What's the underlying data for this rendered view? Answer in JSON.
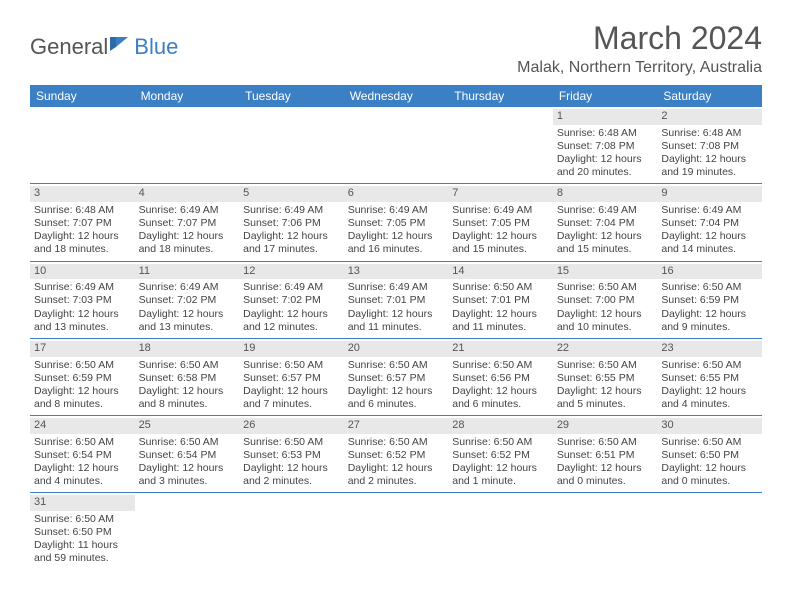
{
  "logo": {
    "part1": "General",
    "part2": "Blue"
  },
  "title": "March 2024",
  "location": "Malak, Northern Territory, Australia",
  "header_bg": "#3b7fc4",
  "daynum_bg": "#e8e8e8",
  "weekdays": [
    "Sunday",
    "Monday",
    "Tuesday",
    "Wednesday",
    "Thursday",
    "Friday",
    "Saturday"
  ],
  "weeks": [
    [
      {
        "n": "",
        "l1": "",
        "l2": "",
        "l3": "",
        "l4": ""
      },
      {
        "n": "",
        "l1": "",
        "l2": "",
        "l3": "",
        "l4": ""
      },
      {
        "n": "",
        "l1": "",
        "l2": "",
        "l3": "",
        "l4": ""
      },
      {
        "n": "",
        "l1": "",
        "l2": "",
        "l3": "",
        "l4": ""
      },
      {
        "n": "",
        "l1": "",
        "l2": "",
        "l3": "",
        "l4": ""
      },
      {
        "n": "1",
        "l1": "Sunrise: 6:48 AM",
        "l2": "Sunset: 7:08 PM",
        "l3": "Daylight: 12 hours",
        "l4": "and 20 minutes."
      },
      {
        "n": "2",
        "l1": "Sunrise: 6:48 AM",
        "l2": "Sunset: 7:08 PM",
        "l3": "Daylight: 12 hours",
        "l4": "and 19 minutes."
      }
    ],
    [
      {
        "n": "3",
        "l1": "Sunrise: 6:48 AM",
        "l2": "Sunset: 7:07 PM",
        "l3": "Daylight: 12 hours",
        "l4": "and 18 minutes."
      },
      {
        "n": "4",
        "l1": "Sunrise: 6:49 AM",
        "l2": "Sunset: 7:07 PM",
        "l3": "Daylight: 12 hours",
        "l4": "and 18 minutes."
      },
      {
        "n": "5",
        "l1": "Sunrise: 6:49 AM",
        "l2": "Sunset: 7:06 PM",
        "l3": "Daylight: 12 hours",
        "l4": "and 17 minutes."
      },
      {
        "n": "6",
        "l1": "Sunrise: 6:49 AM",
        "l2": "Sunset: 7:05 PM",
        "l3": "Daylight: 12 hours",
        "l4": "and 16 minutes."
      },
      {
        "n": "7",
        "l1": "Sunrise: 6:49 AM",
        "l2": "Sunset: 7:05 PM",
        "l3": "Daylight: 12 hours",
        "l4": "and 15 minutes."
      },
      {
        "n": "8",
        "l1": "Sunrise: 6:49 AM",
        "l2": "Sunset: 7:04 PM",
        "l3": "Daylight: 12 hours",
        "l4": "and 15 minutes."
      },
      {
        "n": "9",
        "l1": "Sunrise: 6:49 AM",
        "l2": "Sunset: 7:04 PM",
        "l3": "Daylight: 12 hours",
        "l4": "and 14 minutes."
      }
    ],
    [
      {
        "n": "10",
        "l1": "Sunrise: 6:49 AM",
        "l2": "Sunset: 7:03 PM",
        "l3": "Daylight: 12 hours",
        "l4": "and 13 minutes."
      },
      {
        "n": "11",
        "l1": "Sunrise: 6:49 AM",
        "l2": "Sunset: 7:02 PM",
        "l3": "Daylight: 12 hours",
        "l4": "and 13 minutes."
      },
      {
        "n": "12",
        "l1": "Sunrise: 6:49 AM",
        "l2": "Sunset: 7:02 PM",
        "l3": "Daylight: 12 hours",
        "l4": "and 12 minutes."
      },
      {
        "n": "13",
        "l1": "Sunrise: 6:49 AM",
        "l2": "Sunset: 7:01 PM",
        "l3": "Daylight: 12 hours",
        "l4": "and 11 minutes."
      },
      {
        "n": "14",
        "l1": "Sunrise: 6:50 AM",
        "l2": "Sunset: 7:01 PM",
        "l3": "Daylight: 12 hours",
        "l4": "and 11 minutes."
      },
      {
        "n": "15",
        "l1": "Sunrise: 6:50 AM",
        "l2": "Sunset: 7:00 PM",
        "l3": "Daylight: 12 hours",
        "l4": "and 10 minutes."
      },
      {
        "n": "16",
        "l1": "Sunrise: 6:50 AM",
        "l2": "Sunset: 6:59 PM",
        "l3": "Daylight: 12 hours",
        "l4": "and 9 minutes."
      }
    ],
    [
      {
        "n": "17",
        "l1": "Sunrise: 6:50 AM",
        "l2": "Sunset: 6:59 PM",
        "l3": "Daylight: 12 hours",
        "l4": "and 8 minutes."
      },
      {
        "n": "18",
        "l1": "Sunrise: 6:50 AM",
        "l2": "Sunset: 6:58 PM",
        "l3": "Daylight: 12 hours",
        "l4": "and 8 minutes."
      },
      {
        "n": "19",
        "l1": "Sunrise: 6:50 AM",
        "l2": "Sunset: 6:57 PM",
        "l3": "Daylight: 12 hours",
        "l4": "and 7 minutes."
      },
      {
        "n": "20",
        "l1": "Sunrise: 6:50 AM",
        "l2": "Sunset: 6:57 PM",
        "l3": "Daylight: 12 hours",
        "l4": "and 6 minutes."
      },
      {
        "n": "21",
        "l1": "Sunrise: 6:50 AM",
        "l2": "Sunset: 6:56 PM",
        "l3": "Daylight: 12 hours",
        "l4": "and 6 minutes."
      },
      {
        "n": "22",
        "l1": "Sunrise: 6:50 AM",
        "l2": "Sunset: 6:55 PM",
        "l3": "Daylight: 12 hours",
        "l4": "and 5 minutes."
      },
      {
        "n": "23",
        "l1": "Sunrise: 6:50 AM",
        "l2": "Sunset: 6:55 PM",
        "l3": "Daylight: 12 hours",
        "l4": "and 4 minutes."
      }
    ],
    [
      {
        "n": "24",
        "l1": "Sunrise: 6:50 AM",
        "l2": "Sunset: 6:54 PM",
        "l3": "Daylight: 12 hours",
        "l4": "and 4 minutes."
      },
      {
        "n": "25",
        "l1": "Sunrise: 6:50 AM",
        "l2": "Sunset: 6:54 PM",
        "l3": "Daylight: 12 hours",
        "l4": "and 3 minutes."
      },
      {
        "n": "26",
        "l1": "Sunrise: 6:50 AM",
        "l2": "Sunset: 6:53 PM",
        "l3": "Daylight: 12 hours",
        "l4": "and 2 minutes."
      },
      {
        "n": "27",
        "l1": "Sunrise: 6:50 AM",
        "l2": "Sunset: 6:52 PM",
        "l3": "Daylight: 12 hours",
        "l4": "and 2 minutes."
      },
      {
        "n": "28",
        "l1": "Sunrise: 6:50 AM",
        "l2": "Sunset: 6:52 PM",
        "l3": "Daylight: 12 hours",
        "l4": "and 1 minute."
      },
      {
        "n": "29",
        "l1": "Sunrise: 6:50 AM",
        "l2": "Sunset: 6:51 PM",
        "l3": "Daylight: 12 hours",
        "l4": "and 0 minutes."
      },
      {
        "n": "30",
        "l1": "Sunrise: 6:50 AM",
        "l2": "Sunset: 6:50 PM",
        "l3": "Daylight: 12 hours",
        "l4": "and 0 minutes."
      }
    ],
    [
      {
        "n": "31",
        "l1": "Sunrise: 6:50 AM",
        "l2": "Sunset: 6:50 PM",
        "l3": "Daylight: 11 hours",
        "l4": "and 59 minutes."
      },
      {
        "n": "",
        "l1": "",
        "l2": "",
        "l3": "",
        "l4": ""
      },
      {
        "n": "",
        "l1": "",
        "l2": "",
        "l3": "",
        "l4": ""
      },
      {
        "n": "",
        "l1": "",
        "l2": "",
        "l3": "",
        "l4": ""
      },
      {
        "n": "",
        "l1": "",
        "l2": "",
        "l3": "",
        "l4": ""
      },
      {
        "n": "",
        "l1": "",
        "l2": "",
        "l3": "",
        "l4": ""
      },
      {
        "n": "",
        "l1": "",
        "l2": "",
        "l3": "",
        "l4": ""
      }
    ]
  ]
}
